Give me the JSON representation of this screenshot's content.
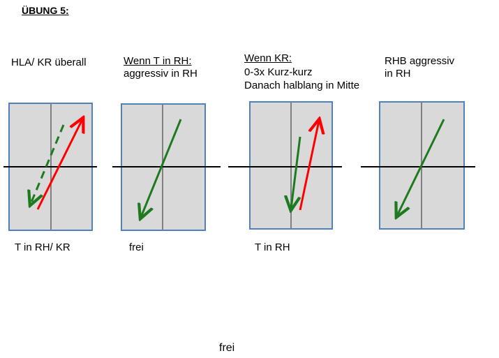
{
  "title": "ÜBUNG 5:",
  "panels": [
    {
      "heading": "HLA/ KR überall",
      "sub1": "",
      "sub2": "",
      "caption": "T in RH/ KR"
    },
    {
      "heading": "Wenn T in RH:",
      "sub1": "aggressiv in RH",
      "sub2": "",
      "caption": "frei"
    },
    {
      "heading": "Wenn KR:",
      "sub1": "0-3x Kurz-kurz",
      "sub2": "Danach halblang in Mitte",
      "caption": "T in RH"
    },
    {
      "heading": "RHB aggressiv",
      "sub1": "in RH",
      "sub2": "",
      "caption": ""
    }
  ],
  "footer": "frei",
  "colors": {
    "court_fill": "#d9d9d9",
    "court_border": "#4f81bd",
    "center_line": "#808080",
    "net_line": "#000000",
    "green_arrow": "#1e7a1e",
    "red_arrow": "#ff0000"
  }
}
